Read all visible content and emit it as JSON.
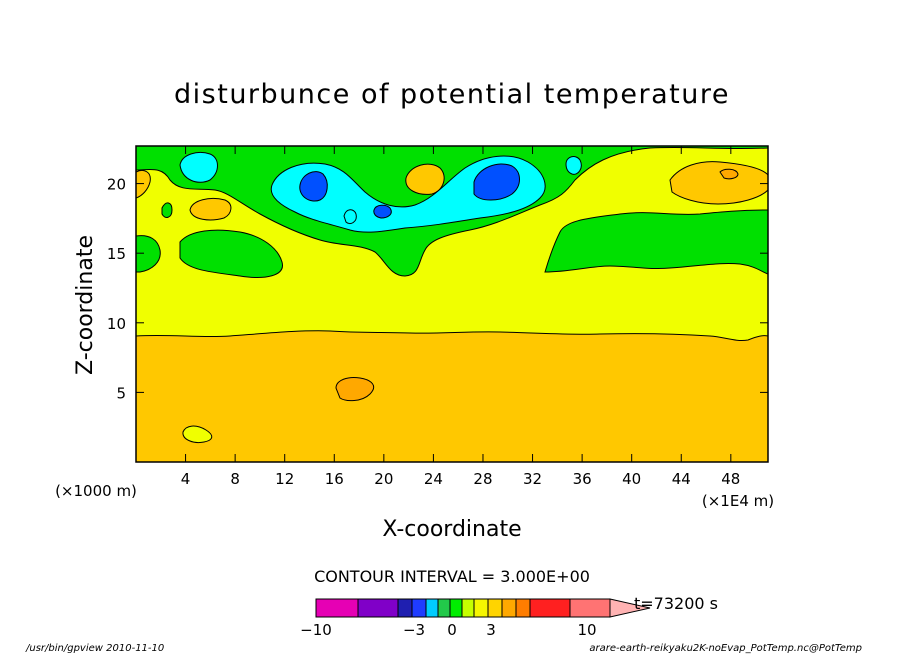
{
  "chart_data": {
    "type": "heatmap",
    "title": "disturbunce of potential temperature",
    "xlabel": "X-coordinate",
    "ylabel": "Z-coordinate",
    "x_unit": "(×1E4 m)",
    "y_unit": "(×1000 m)",
    "xlim": [
      0,
      51
    ],
    "ylim": [
      0,
      22.7
    ],
    "x_ticks": [
      4,
      8,
      12,
      16,
      20,
      24,
      28,
      32,
      36,
      40,
      44,
      48
    ],
    "y_ticks": [
      5,
      10,
      15,
      20
    ],
    "contour_interval": "CONTOUR INTERVAL = 3.000E+00",
    "time_label": "t=73200 s",
    "colorbar": {
      "tick_labels": [
        "−10",
        "−3",
        "0",
        "3",
        "10"
      ],
      "tick_values": [
        -10,
        -3,
        0,
        3,
        10
      ],
      "colors": [
        "#e600b4",
        "#8000c8",
        "#1f1fb0",
        "#1f3cff",
        "#00ccff",
        "#22c94a",
        "#00ee00",
        "#c6ff00",
        "#f6f600",
        "#ffd400",
        "#ffa800",
        "#ff7d00",
        "#ff2020",
        "#ff7373",
        "#ffb3b3"
      ]
    },
    "regions": [
      {
        "level": "yellow",
        "color": "#f0ff00",
        "desc": "base field, upper layer"
      },
      {
        "level": "orange",
        "color": "#ffc800",
        "desc": "lower layer below z≈9.4"
      },
      {
        "level": "green",
        "color": "#00e000",
        "desc": "upper band"
      },
      {
        "level": "cyan",
        "color": "#00ffff",
        "desc": "upper cells"
      },
      {
        "level": "blue",
        "color": "#0050ff",
        "desc": "cores near x≈14.5 and x≈29, z≈20.5"
      }
    ]
  },
  "footer": {
    "left": "/usr/bin/gpview  2010-11-10",
    "right": "arare-earth-reikyaku2K-noEvap_PotTemp.nc@PotTemp"
  }
}
